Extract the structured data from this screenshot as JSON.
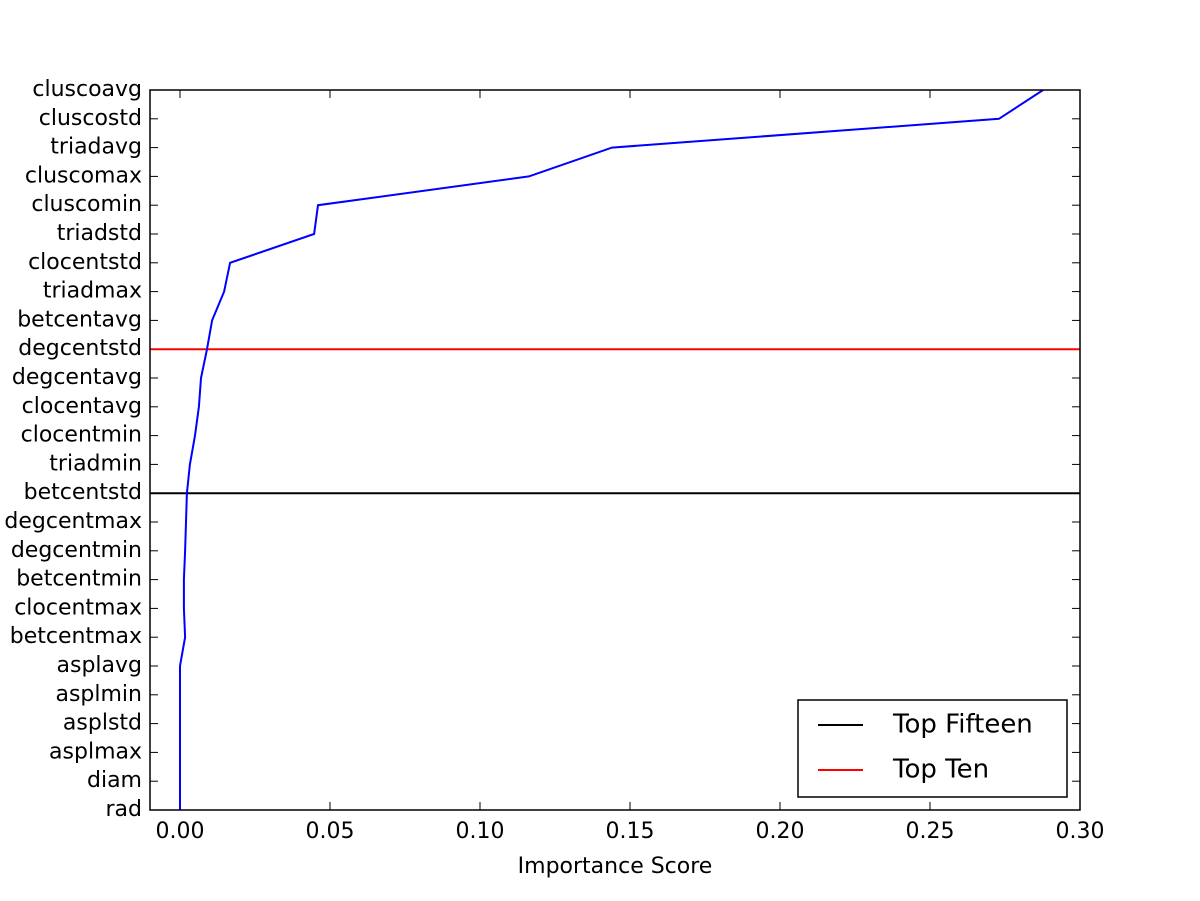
{
  "chart_data": {
    "type": "line",
    "xlabel": "Importance Score",
    "categories": [
      "rad",
      "diam",
      "asplmax",
      "asplstd",
      "asplmin",
      "asplavg",
      "betcentmax",
      "clocentmax",
      "betcentmin",
      "degcentmin",
      "degcentmax",
      "betcentstd",
      "triadmin",
      "clocentmin",
      "clocentavg",
      "degcentavg",
      "degcentstd",
      "betcentavg",
      "triadmax",
      "clocentstd",
      "triadstd",
      "cluscomin",
      "cluscomax",
      "triadavg",
      "cluscostd",
      "cluscoavg"
    ],
    "series": [
      {
        "name": "Importance",
        "color": "#0000ff",
        "values": [
          0.0,
          0.0,
          0.0,
          0.0,
          0.0,
          0.0,
          0.0017,
          0.0013,
          0.0013,
          0.0017,
          0.002,
          0.0023,
          0.0033,
          0.005,
          0.0063,
          0.007,
          0.009,
          0.0107,
          0.0147,
          0.0167,
          0.0447,
          0.046,
          0.1163,
          0.144,
          0.273,
          0.2877
        ]
      }
    ],
    "reference_lines": [
      {
        "name": "Top Fifteen",
        "color": "#000000",
        "y": 11
      },
      {
        "name": "Top Ten",
        "color": "#ff0000",
        "y": 16
      }
    ],
    "xlim": [
      -0.01,
      0.3
    ],
    "xticks": [
      {
        "value": 0,
        "label": "0.00"
      },
      {
        "value": 0.05,
        "label": "0.05"
      },
      {
        "value": 0.1,
        "label": "0.10"
      },
      {
        "value": 0.15,
        "label": "0.15"
      },
      {
        "value": 0.2,
        "label": "0.20"
      },
      {
        "value": 0.25,
        "label": "0.25"
      },
      {
        "value": 0.3,
        "label": "0.30"
      }
    ],
    "legend": "lower right"
  }
}
